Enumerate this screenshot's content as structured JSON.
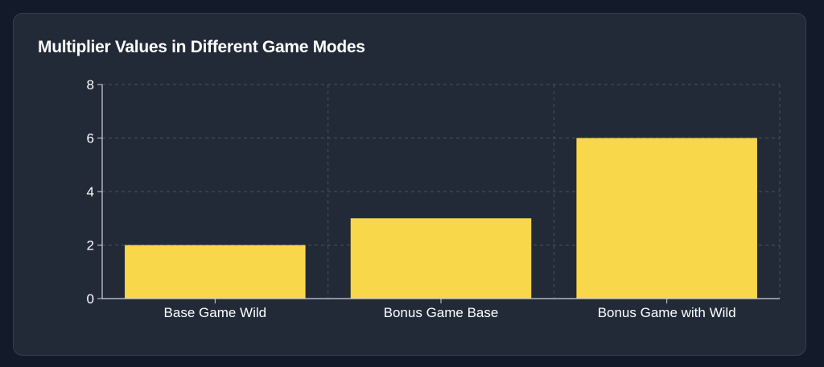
{
  "chart_data": {
    "type": "bar",
    "title": "Multiplier Values in Different Game Modes",
    "categories": [
      "Base Game Wild",
      "Bonus Game Base",
      "Bonus Game with Wild"
    ],
    "values": [
      2,
      3,
      6
    ],
    "xlabel": "",
    "ylabel": "",
    "ylim": [
      0,
      8
    ],
    "yticks": [
      "0",
      "2",
      "4",
      "6",
      "8"
    ],
    "grid": true,
    "legend": "none"
  },
  "colors": {
    "bar": "#f9d74a",
    "grid": "#4a5262",
    "axis": "#cfd3da",
    "background": "#222a38"
  }
}
